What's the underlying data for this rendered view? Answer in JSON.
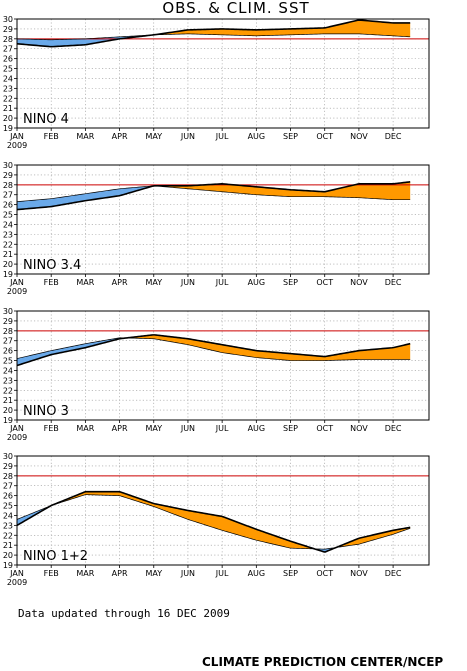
{
  "title": "OBS. & CLIM. SST",
  "updated_text": "Data updated through 16 DEC 2009",
  "credit": "CLIMATE PREDICTION CENTER/NCEP",
  "colors": {
    "warm": "#ff9900",
    "cold": "#6aa9e9",
    "ref_line": "#cc0000",
    "grid": "#999999"
  },
  "chart_data": [
    {
      "type": "area",
      "label": "NINO 4",
      "months": [
        "JAN",
        "FEB",
        "MAR",
        "APR",
        "MAY",
        "JUN",
        "JUL",
        "AUG",
        "SEP",
        "OCT",
        "NOV",
        "DEC"
      ],
      "year_label": "2009",
      "yticks": [
        19,
        20,
        21,
        22,
        23,
        24,
        25,
        26,
        27,
        28,
        29,
        30
      ],
      "ylim": [
        19,
        30
      ],
      "reference": 28,
      "x": [
        0,
        1,
        2,
        3,
        4,
        5,
        6,
        7,
        8,
        9,
        10,
        11,
        11.5
      ],
      "observed": [
        27.5,
        27.2,
        27.4,
        28.0,
        28.4,
        28.9,
        29.0,
        28.9,
        29.0,
        29.1,
        29.9,
        29.6,
        29.6
      ],
      "climatology": [
        28.0,
        27.9,
        28.0,
        28.2,
        28.4,
        28.5,
        28.4,
        28.3,
        28.4,
        28.5,
        28.5,
        28.3,
        28.2
      ]
    },
    {
      "type": "area",
      "label": "NINO 3.4",
      "months": [
        "JAN",
        "FEB",
        "MAR",
        "APR",
        "MAY",
        "JUN",
        "JUL",
        "AUG",
        "SEP",
        "OCT",
        "NOV",
        "DEC"
      ],
      "year_label": "2009",
      "yticks": [
        19,
        20,
        21,
        22,
        23,
        24,
        25,
        26,
        27,
        28,
        29,
        30
      ],
      "ylim": [
        19,
        30
      ],
      "reference": 28,
      "x": [
        0,
        1,
        2,
        3,
        4,
        5,
        6,
        7,
        8,
        9,
        10,
        11,
        11.5
      ],
      "observed": [
        25.5,
        25.8,
        26.4,
        26.9,
        27.9,
        27.9,
        28.1,
        27.8,
        27.5,
        27.3,
        28.1,
        28.1,
        28.3
      ],
      "climatology": [
        26.3,
        26.6,
        27.1,
        27.6,
        27.9,
        27.6,
        27.3,
        27.0,
        26.8,
        26.8,
        26.7,
        26.5,
        26.5
      ]
    },
    {
      "type": "area",
      "label": "NINO 3",
      "months": [
        "JAN",
        "FEB",
        "MAR",
        "APR",
        "MAY",
        "JUN",
        "JUL",
        "AUG",
        "SEP",
        "OCT",
        "NOV",
        "DEC"
      ],
      "year_label": "2009",
      "yticks": [
        19,
        20,
        21,
        22,
        23,
        24,
        25,
        26,
        27,
        28,
        29,
        30
      ],
      "ylim": [
        19,
        30
      ],
      "reference": 28,
      "x": [
        0,
        1,
        2,
        3,
        4,
        5,
        6,
        7,
        8,
        9,
        10,
        11,
        11.5
      ],
      "observed": [
        24.5,
        25.6,
        26.3,
        27.2,
        27.6,
        27.2,
        26.6,
        26.0,
        25.7,
        25.4,
        26.0,
        26.3,
        26.7
      ],
      "climatology": [
        25.2,
        26.0,
        26.7,
        27.3,
        27.2,
        26.6,
        25.8,
        25.3,
        25.0,
        25.0,
        25.1,
        25.1,
        25.1
      ]
    },
    {
      "type": "area",
      "label": "NINO 1+2",
      "months": [
        "JAN",
        "FEB",
        "MAR",
        "APR",
        "MAY",
        "JUN",
        "JUL",
        "AUG",
        "SEP",
        "OCT",
        "NOV",
        "DEC"
      ],
      "year_label": "2009",
      "yticks": [
        19,
        20,
        21,
        22,
        23,
        24,
        25,
        26,
        27,
        28,
        29,
        30
      ],
      "ylim": [
        19,
        30
      ],
      "reference": 28,
      "x": [
        0,
        1,
        2,
        3,
        4,
        5,
        6,
        7,
        8,
        9,
        10,
        11,
        11.5
      ],
      "observed": [
        23.0,
        25.0,
        26.4,
        26.4,
        25.2,
        24.5,
        23.9,
        22.6,
        21.4,
        20.3,
        21.7,
        22.5,
        22.8
      ],
      "climatology": [
        23.6,
        25.0,
        26.1,
        26.0,
        24.9,
        23.6,
        22.5,
        21.5,
        20.7,
        20.6,
        21.1,
        22.1,
        22.7
      ]
    }
  ]
}
